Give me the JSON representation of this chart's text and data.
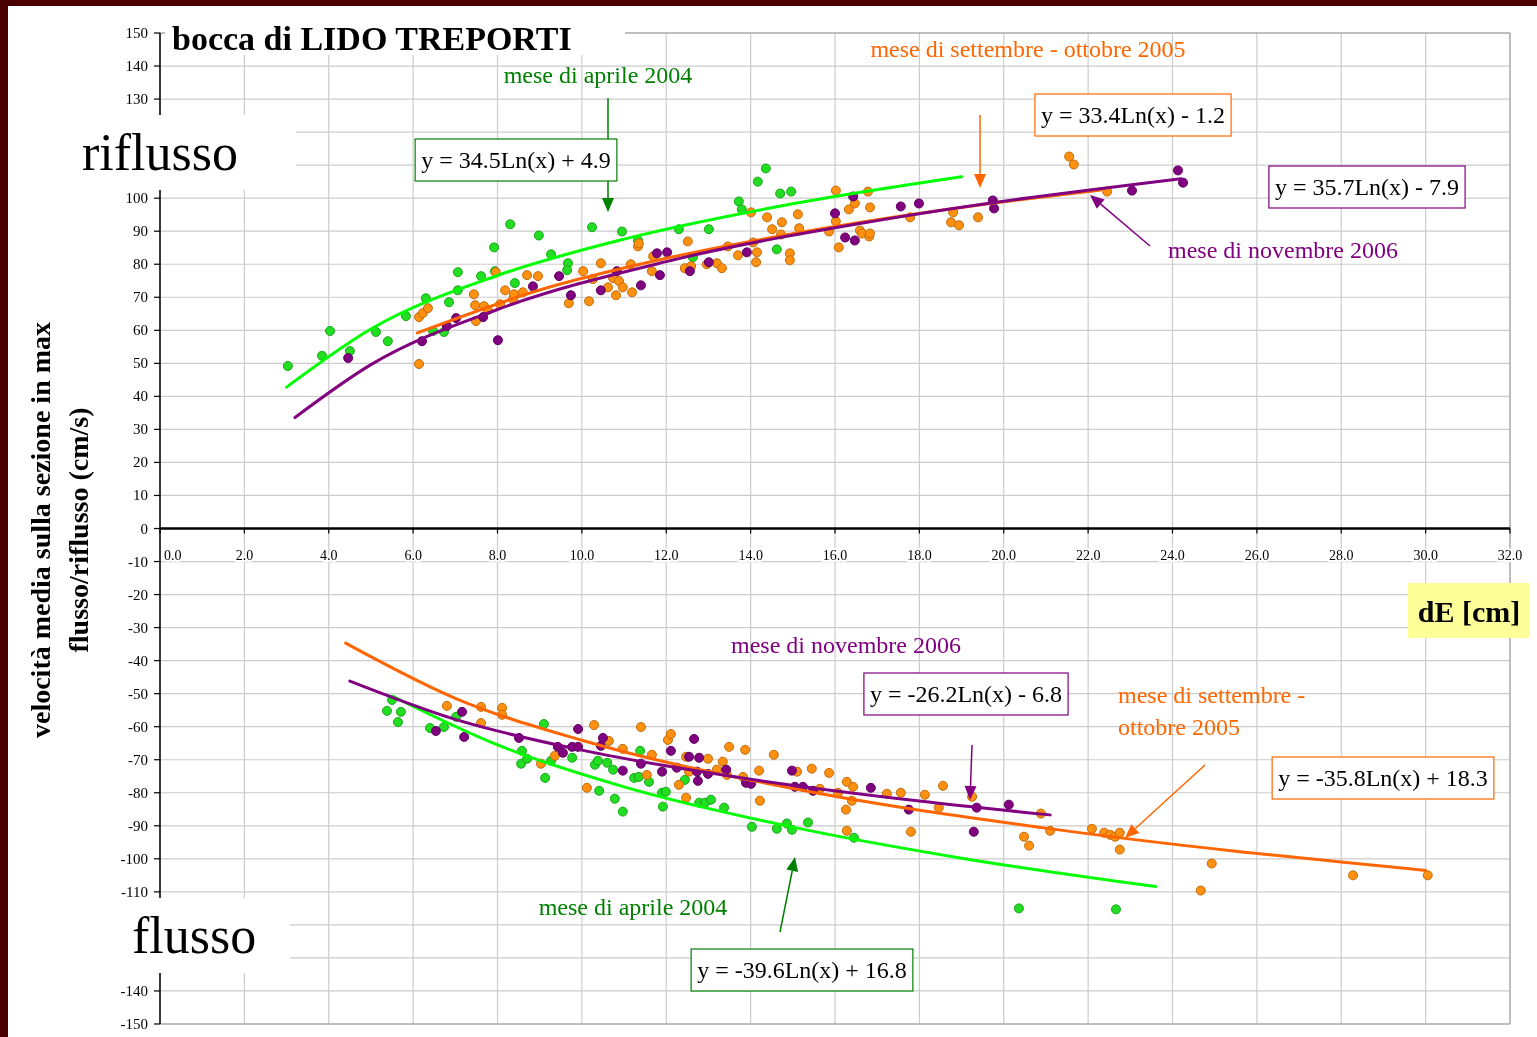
{
  "chart_data": {
    "type": "scatter",
    "title": "bocca di LIDO TREPORTI",
    "xlabel": "dE [cm]",
    "ylabel": "velocità media sulla sezione in max\nflusso/riflusso (cm/s)",
    "xlim": [
      0,
      32
    ],
    "ylim": [
      -150,
      150
    ],
    "xticks": [
      {
        "value": 0,
        "label": "0.0"
      },
      {
        "value": 2,
        "label": "2.0"
      },
      {
        "value": 4,
        "label": "4.0"
      },
      {
        "value": 6,
        "label": "6.0"
      },
      {
        "value": 8,
        "label": "8.0"
      },
      {
        "value": 10,
        "label": "10.0"
      },
      {
        "value": 12,
        "label": "12.0"
      },
      {
        "value": 14,
        "label": "14.0"
      },
      {
        "value": 16,
        "label": "16.0"
      },
      {
        "value": 18,
        "label": "18.0"
      },
      {
        "value": 20,
        "label": "20.0"
      },
      {
        "value": 22,
        "label": "22.0"
      },
      {
        "value": 24,
        "label": "24.0"
      },
      {
        "value": 26,
        "label": "26.0"
      },
      {
        "value": 28,
        "label": "28.0"
      },
      {
        "value": 30,
        "label": "30.0"
      },
      {
        "value": 32,
        "label": "32.0"
      }
    ],
    "yticks": [
      150,
      140,
      130,
      {
        "value": 120,
        "label": null
      },
      {
        "value": 110,
        "label": null
      },
      100,
      90,
      80,
      70,
      60,
      50,
      40,
      30,
      20,
      10,
      0,
      -10,
      -20,
      -30,
      -40,
      -50,
      -60,
      -70,
      -80,
      -90,
      -100,
      -110,
      {
        "value": -120,
        "label": null
      },
      {
        "value": -130,
        "label": null
      },
      -140,
      -150
    ],
    "grid": true,
    "marker": "circle",
    "line_style": "solid",
    "series": [
      {
        "color": "#22dd22",
        "x": [
          3.03,
          3.84,
          4.03,
          4.5,
          5.12,
          5.4,
          5.83,
          6.3,
          6.47,
          6.73,
          6.85,
          7.06,
          7.06,
          7.61,
          7.92,
          7.94,
          8.3,
          8.41,
          8.98,
          9.27,
          9.67,
          9.65,
          10.24,
          10.95,
          11.33,
          12.3,
          12.63,
          13.01,
          13.72,
          13.79,
          14.36,
          14.17,
          14.7,
          14.96,
          14.62,
          5.5,
          5.38,
          5.71,
          5.64,
          6.4,
          6.73,
          7.02,
          8.58,
          8.56,
          8.7,
          9.1,
          9.27,
          9.13,
          9.77,
          10.31,
          10.38,
          10.6,
          10.74,
          10.41,
          10.78,
          10.97,
          11.38,
          11.24,
          11.35,
          11.59,
          11.9,
          11.99,
          11.92,
          12.44,
          12.78,
          12.92,
          13.06,
          13.37,
          14.03,
          14.62,
          14.86,
          14.98,
          15.36,
          16.45,
          20.36,
          22.66
        ],
        "values": [
          49.2,
          52.3,
          59.8,
          53.7,
          59.5,
          56.7,
          64.3,
          69.7,
          59.8,
          59.5,
          68.5,
          72.1,
          77.6,
          76.4,
          85.1,
          77.9,
          92.1,
          74.3,
          88.7,
          83.0,
          80.3,
          78.2,
          91.2,
          89.9,
          87.2,
          90.6,
          82.1,
          90.6,
          99.0,
          96.6,
          109.0,
          105.0,
          101.4,
          102.0,
          84.5,
          -51.9,
          -55.2,
          -55.5,
          -58.6,
          -60.4,
          -60.1,
          -57.0,
          -67.3,
          -71.2,
          -69.7,
          -59.2,
          -70.3,
          -75.5,
          -69.4,
          -71.5,
          -70.3,
          -70.9,
          -73.0,
          -79.4,
          -81.8,
          -85.7,
          -67.3,
          -75.5,
          -75.2,
          -76.7,
          -80.0,
          -79.7,
          -84.2,
          -76.1,
          -83.0,
          -83.0,
          -82.1,
          -84.5,
          -90.3,
          -90.9,
          -89.3,
          -91.2,
          -89.0,
          -93.6,
          -115.0,
          -115.3
        ]
      },
      {
        "color": "#ff9010",
        "x": [
          6.14,
          6.14,
          6.23,
          6.35,
          7.44,
          7.47,
          7.49,
          7.68,
          7.77,
          7.96,
          8.06,
          8.18,
          8.37,
          8.39,
          8.6,
          8.7,
          8.96,
          9.69,
          10.03,
          10.17,
          10.26,
          10.45,
          10.62,
          10.74,
          10.88,
          10.81,
          10.97,
          11.16,
          11.19,
          11.33,
          11.35,
          11.66,
          11.69,
          12.44,
          12.51,
          12.59,
          12.96,
          13.2,
          13.32,
          13.46,
          13.7,
          14.01,
          14.06,
          14.15,
          14.13,
          14.39,
          14.51,
          14.74,
          14.72,
          14.93,
          14.93,
          15.12,
          15.15,
          15.86,
          16.02,
          16.02,
          16.09,
          16.33,
          16.47,
          16.59,
          16.64,
          16.81,
          16.78,
          16.83,
          16.83,
          17.78,
          18.75,
          18.8,
          18.94,
          19.39,
          21.55,
          21.66,
          22.45,
          6.8,
          7.61,
          7.61,
          8.11,
          8.11,
          9.03,
          9.36,
          10.12,
          10.29,
          10.64,
          10.97,
          11.4,
          11.54,
          11.66,
          12.04,
          12.11,
          12.3,
          12.47,
          12.47,
          12.54,
          12.99,
          13.2,
          13.34,
          13.49,
          13.44,
          13.82,
          13.87,
          14.2,
          14.22,
          14.55,
          15.1,
          15.45,
          15.86,
          15.64,
          16.07,
          16.28,
          16.43,
          16.4,
          16.26,
          16.28,
          17.23,
          17.56,
          17.8,
          18.13,
          18.46,
          18.56,
          19.25,
          20.48,
          20.6,
          20.88,
          21.1,
          22.09,
          22.38,
          22.52,
          22.64,
          22.75,
          22.75,
          24.93,
          24.67,
          28.28,
          30.05
        ],
        "values": [
          49.8,
          64.0,
          65.2,
          66.7,
          70.9,
          67.6,
          62.8,
          67.3,
          66.1,
          77.6,
          67.9,
          72.1,
          69.4,
          70.9,
          71.5,
          76.7,
          76.4,
          68.2,
          77.9,
          68.8,
          75.5,
          80.3,
          73.0,
          75.8,
          74.9,
          70.6,
          73.0,
          80.0,
          71.5,
          85.4,
          86.3,
          77.9,
          82.4,
          78.8,
          86.9,
          79.4,
          80.0,
          80.3,
          78.8,
          85.4,
          82.7,
          95.7,
          86.6,
          83.6,
          80.6,
          94.2,
          90.6,
          92.7,
          89.0,
          83.3,
          81.2,
          95.1,
          90.9,
          89.9,
          102.3,
          93.0,
          85.1,
          96.6,
          98.4,
          90.2,
          89.3,
          88.4,
          102.0,
          97.2,
          89.3,
          94.2,
          92.7,
          95.7,
          91.8,
          94.2,
          112.6,
          110.2,
          102.0,
          -53.7,
          -54.0,
          -58.9,
          -54.3,
          -56.4,
          -71.2,
          -68.8,
          -78.5,
          -59.5,
          -64.3,
          -66.7,
          -60.1,
          -74.6,
          -68.5,
          -64.0,
          -62.2,
          -77.6,
          -69.1,
          -81.5,
          -73.6,
          -69.7,
          -73.0,
          -70.6,
          -66.1,
          -74.6,
          -75.2,
          -67.0,
          -73.3,
          -82.4,
          -68.5,
          -73.6,
          -72.7,
          -74.0,
          -78.8,
          -80.0,
          -76.7,
          -78.2,
          -82.4,
          -85.1,
          -91.5,
          -80.3,
          -80.0,
          -91.8,
          -80.6,
          -84.5,
          -77.9,
          -81.2,
          -93.3,
          -96.0,
          -86.3,
          -91.5,
          -90.9,
          -92.1,
          -92.7,
          -93.3,
          -92.1,
          -97.2,
          -101.4,
          -109.6,
          -105.0,
          -105.0
        ]
      },
      {
        "color": "#800080",
        "x": [
          4.46,
          6.21,
          6.8,
          7.02,
          8.01,
          7.66,
          8.84,
          9.46,
          9.74,
          10.45,
          10.83,
          11.4,
          11.78,
          12.02,
          11.85,
          12.56,
          13.01,
          13.91,
          16.0,
          16.43,
          16.24,
          16.47,
          17.56,
          17.99,
          19.74,
          19.77,
          23.04,
          24.13,
          24.25,
          6.54,
          7.16,
          7.21,
          8.51,
          9.91,
          10.5,
          10.45,
          9.43,
          9.55,
          9.77,
          9.91,
          10.97,
          11.4,
          11.9,
          12.11,
          12.25,
          12.54,
          12.66,
          12.78,
          12.73,
          12.75,
          12.99,
          13.42,
          13.89,
          14.01,
          14.98,
          15.05,
          15.24,
          15.48,
          16.85,
          17.75,
          19.36,
          19.29,
          20.12
        ],
        "values": [
          51.6,
          56.7,
          61.3,
          63.7,
          57.0,
          64.0,
          73.3,
          76.4,
          70.6,
          72.1,
          77.9,
          73.6,
          83.3,
          83.6,
          76.7,
          77.9,
          80.6,
          83.6,
          95.4,
          100.5,
          88.1,
          87.2,
          97.5,
          98.4,
          99.3,
          96.9,
          102.3,
          108.4,
          104.7,
          -61.3,
          -55.5,
          -63.1,
          -63.4,
          -60.7,
          -63.4,
          -65.8,
          -66.1,
          -67.9,
          -66.1,
          -66.1,
          -73.3,
          -71.2,
          -73.6,
          -67.3,
          -72.4,
          -69.1,
          -63.7,
          -69.4,
          -73.6,
          -76.4,
          -74.3,
          -73.0,
          -77.0,
          -77.3,
          -73.3,
          -78.2,
          -78.2,
          -79.4,
          -78.5,
          -85.1,
          -84.5,
          -91.8,
          -83.6
        ]
      },
      {
        "type": "line",
        "marker": "none",
        "color": "#00ff00",
        "x": [
          3.0,
          5,
          8,
          11,
          15,
          19
        ],
        "values": [
          42.8,
          60.4,
          76.6,
          87.6,
          98.3,
          106.5
        ]
      },
      {
        "type": "line",
        "marker": "none",
        "color": "#ff6600",
        "x": [
          6.1,
          9,
          12,
          16,
          20,
          22.3
        ],
        "values": [
          59.2,
          72.2,
          81.8,
          91.4,
          98.9,
          102.5
        ]
      },
      {
        "type": "line",
        "marker": "none",
        "color": "#800080",
        "x": [
          3.2,
          5,
          8,
          12,
          17,
          24.2
        ],
        "values": [
          33.6,
          49.6,
          66.3,
          80.8,
          93.2,
          105.9
        ]
      },
      {
        "type": "line",
        "marker": "none",
        "color": "#00ff00",
        "x": [
          5.5,
          8,
          11,
          15,
          19,
          23.6
        ],
        "values": [
          -50.7,
          -65.5,
          -78.2,
          -90.4,
          -99.8,
          -108.4
        ]
      },
      {
        "type": "line",
        "marker": "none",
        "color": "#ff6600",
        "x": [
          4.4,
          7,
          10,
          15,
          21,
          30
        ],
        "values": [
          -34.7,
          -51.4,
          -64.1,
          -78.7,
          -90.7,
          -103.5
        ]
      },
      {
        "type": "line",
        "marker": "none",
        "color": "#800080",
        "x": [
          4.5,
          7,
          10,
          14,
          18,
          21.1
        ],
        "values": [
          -46.2,
          -57.8,
          -67.1,
          -75.9,
          -82.5,
          -86.7
        ]
      }
    ],
    "annotations": [
      "mese di aprile 2004",
      "y = 34.5Ln(x) + 4.9",
      "mese di settembre - ottobre 2005",
      "y = 33.4Ln(x) - 1.2",
      "y = 35.7Ln(x) - 7.9",
      "mese di novembre 2006",
      "riflusso",
      "mese di novembre 2006",
      "y = -26.2Ln(x) - 6.8",
      "mese di settembre -\nottobre 2005",
      "y = -35.8Ln(x) + 18.3",
      "mese di aprile 2004",
      "y = -39.6Ln(x) + 16.8",
      "flusso"
    ]
  }
}
